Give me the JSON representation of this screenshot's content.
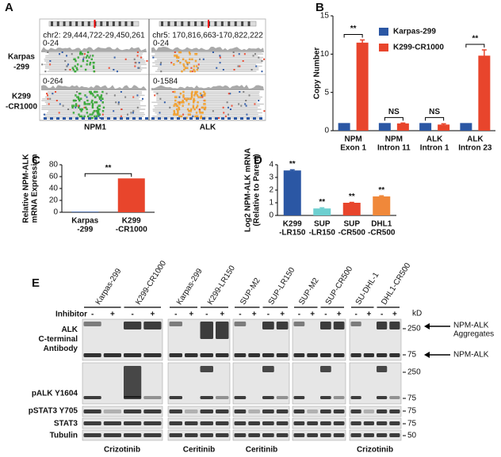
{
  "panel_labels": [
    "A",
    "B",
    "C",
    "D",
    "E"
  ],
  "igv": {
    "coordinates": [
      "chr2: 29,444,722-29,450,261",
      "chr5: 170,816,663-170,822,222"
    ],
    "scales": [
      "0-24",
      "0-24",
      "0-264",
      "0-1584"
    ],
    "samples": [
      "Karpas\n-299",
      "K299\n-CR1000"
    ],
    "genes": [
      "NPM1",
      "ALK"
    ]
  },
  "chart_data": [
    {
      "type": "bar",
      "ylabel": "Copy Number",
      "categories": [
        "NPM\nExon 1",
        "NPM\nIntron 11",
        "ALK\nIntron 1",
        "ALK\nIntron 23"
      ],
      "series": [
        {
          "name": "Karpas-299",
          "color": "#2b57a4",
          "values": [
            1,
            1,
            1,
            1
          ]
        },
        {
          "name": "K299-CR1000",
          "color": "#e8452c",
          "values": [
            11.5,
            0.95,
            0.8,
            9.8
          ],
          "errors": [
            0.35,
            0.05,
            0.1,
            0.75
          ]
        }
      ],
      "ylim": [
        0,
        15
      ],
      "yticks": [
        0,
        5,
        10,
        15
      ],
      "legend": "upper right",
      "annotations": [
        "**",
        "NS",
        "NS",
        "**"
      ]
    },
    {
      "type": "bar",
      "ylabel": "Relative NPM-ALK\nmRNA Expression",
      "categories": [
        "Karpas\n-299",
        "K299\n-CR1000"
      ],
      "values": [
        1,
        57
      ],
      "colors": [
        "#2b57a4",
        "#e8452c"
      ],
      "ylim": [
        0,
        80
      ],
      "yticks": [
        0,
        20,
        40,
        60,
        80
      ],
      "annotations": [
        "**"
      ]
    },
    {
      "type": "bar",
      "ylabel": "Log2 NPM-ALK mRNA\n(Relative to Parent)",
      "categories": [
        "K299\n-LR150",
        "SUP\n-LR150",
        "SUP\n-CR500",
        "DHL1\n-CR500"
      ],
      "values": [
        3.55,
        0.55,
        1.0,
        1.5
      ],
      "errors": [
        0.05,
        0.05,
        0.03,
        0.05
      ],
      "colors": [
        "#2b57a4",
        "#6dcfd0",
        "#e8452c",
        "#f0883a"
      ],
      "ylim": [
        0,
        4
      ],
      "yticks": [
        0,
        1,
        2,
        3,
        4
      ],
      "annotations": [
        "**",
        "**",
        "**",
        "**"
      ]
    }
  ],
  "blot": {
    "samples": [
      "Karpas-299",
      "K299-CR1000",
      "Karpas-299",
      "K299-LR150",
      "SUP-M2",
      "SUP-LR150",
      "SUP-M2",
      "SUP-CR500",
      "SU-DHL-1",
      "DHL1-CR500"
    ],
    "inhibitor_label": "Inhibitor",
    "treatment": [
      "-",
      "+"
    ],
    "rows": [
      "ALK\nC-terminal\nAntibody",
      "pALK Y1604",
      "pSTAT3 Y705",
      "STAT3",
      "Tubulin"
    ],
    "marker_unit": "kD",
    "markers": [
      250,
      75,
      250,
      75,
      75,
      75,
      50
    ],
    "arrows": [
      "NPM-ALK\nAggregates",
      "NPM-ALK"
    ],
    "inhibitors": [
      "Crizotinib",
      "Ceritinib",
      "Ceritinib",
      "Crizotinib"
    ]
  }
}
